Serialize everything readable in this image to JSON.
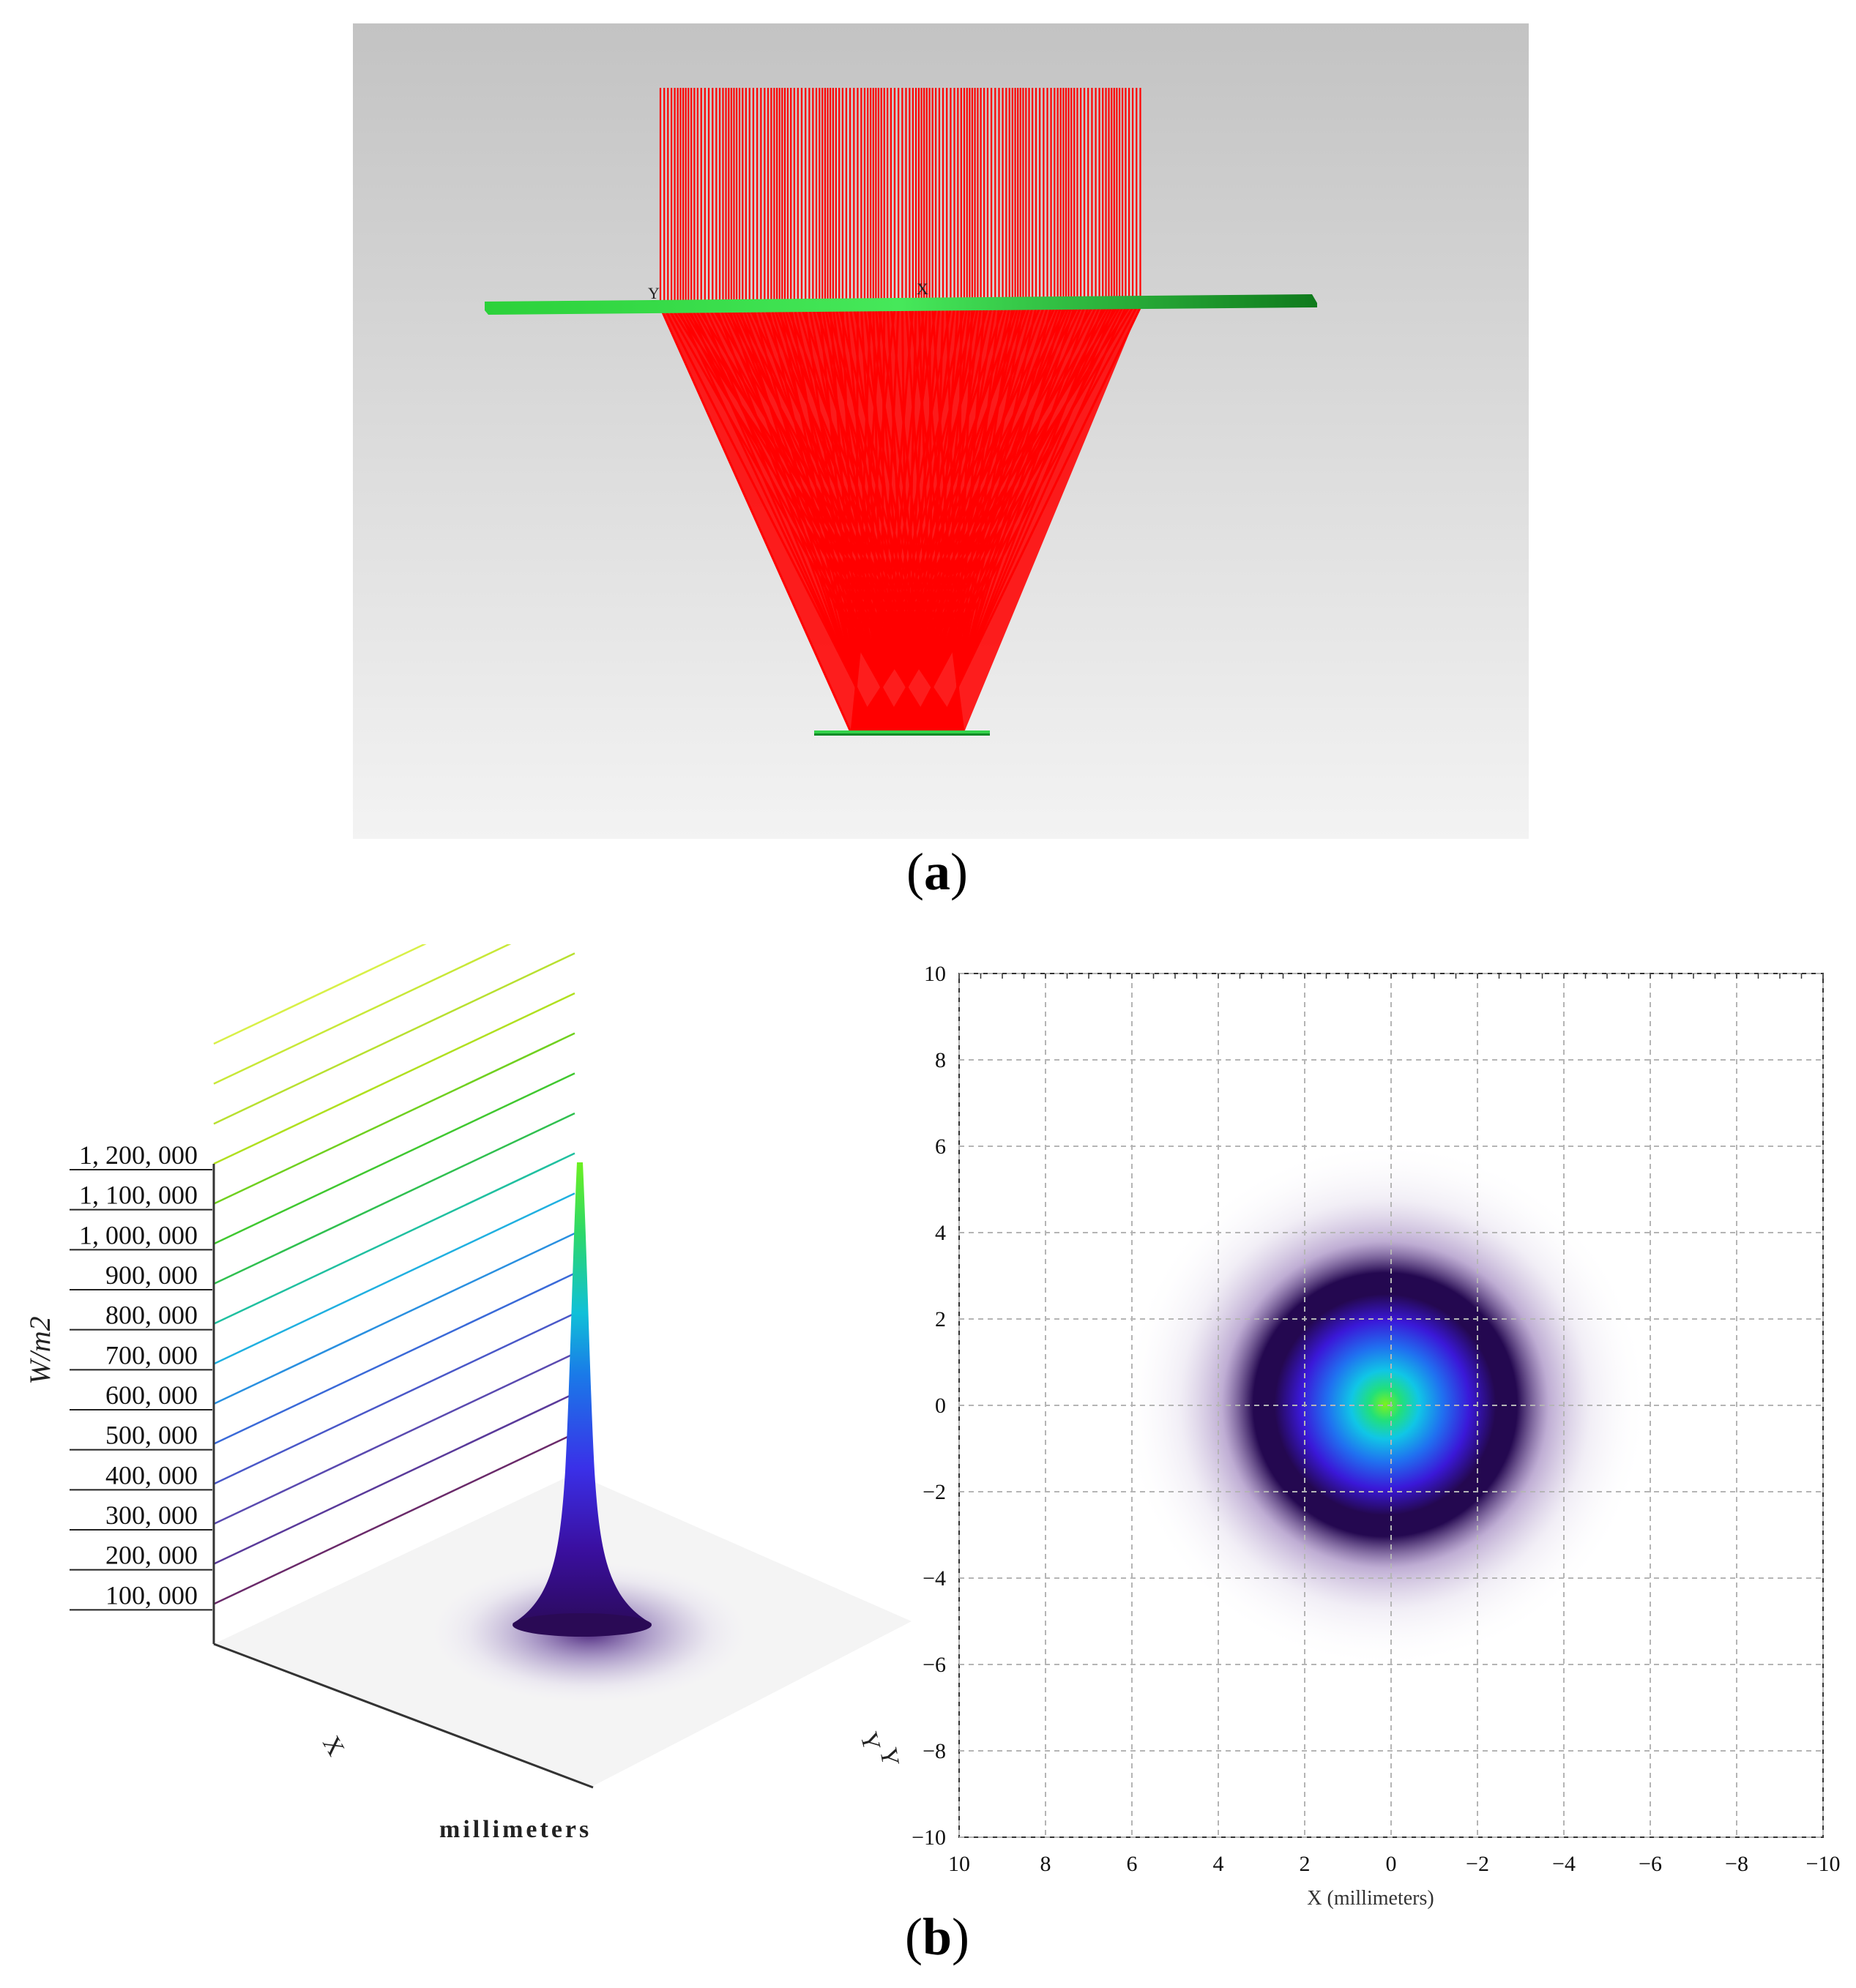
{
  "figure": {
    "panel_a_label": "a",
    "panel_b_label": "b"
  },
  "colors": {
    "ray": "#ff0000",
    "lens": "#22cc33",
    "sim_background_top": "#c4c4c4",
    "sim_background_bottom": "#f2f2f2"
  },
  "panel_a": {
    "axis_label_y": "Y",
    "axis_label_x": "X"
  },
  "chart_data": [
    {
      "type": "surface3d",
      "zlabel": "W/m2",
      "xlabel": "X",
      "ylabel": "Y",
      "unit_label": "millimeters",
      "z_ticks": [
        "100, 000",
        "200, 000",
        "300, 000",
        "400, 000",
        "500, 000",
        "600, 000",
        "700, 000",
        "800, 000",
        "900, 000",
        "1, 000, 000",
        "1, 100, 000",
        "1, 200, 000"
      ],
      "z_tick_values": [
        100000,
        200000,
        300000,
        400000,
        500000,
        600000,
        700000,
        800000,
        900000,
        1000000,
        1100000,
        1200000
      ],
      "peak_value": 1240000,
      "zlim": [
        0,
        1200000
      ]
    },
    {
      "type": "heatmap",
      "xlabel": "X (millimeters)",
      "ylabel": "Y",
      "xlim": [
        10,
        -10
      ],
      "ylim": [
        -10,
        10
      ],
      "x_ticks": [
        "10",
        "8",
        "6",
        "4",
        "2",
        "0",
        "−2",
        "−4",
        "−6",
        "−8",
        "−10"
      ],
      "x_tick_values": [
        10,
        8,
        6,
        4,
        2,
        0,
        -2,
        -4,
        -6,
        -8,
        -10
      ],
      "y_ticks": [
        "10",
        "8",
        "6",
        "4",
        "2",
        "0",
        "−2",
        "−4",
        "−6",
        "−8",
        "−10"
      ],
      "y_tick_values": [
        10,
        8,
        6,
        4,
        2,
        0,
        -2,
        -4,
        -6,
        -8,
        -10
      ],
      "grid": true,
      "spot_center": [
        0,
        0
      ],
      "spot_radius_mm": 2.6
    }
  ]
}
